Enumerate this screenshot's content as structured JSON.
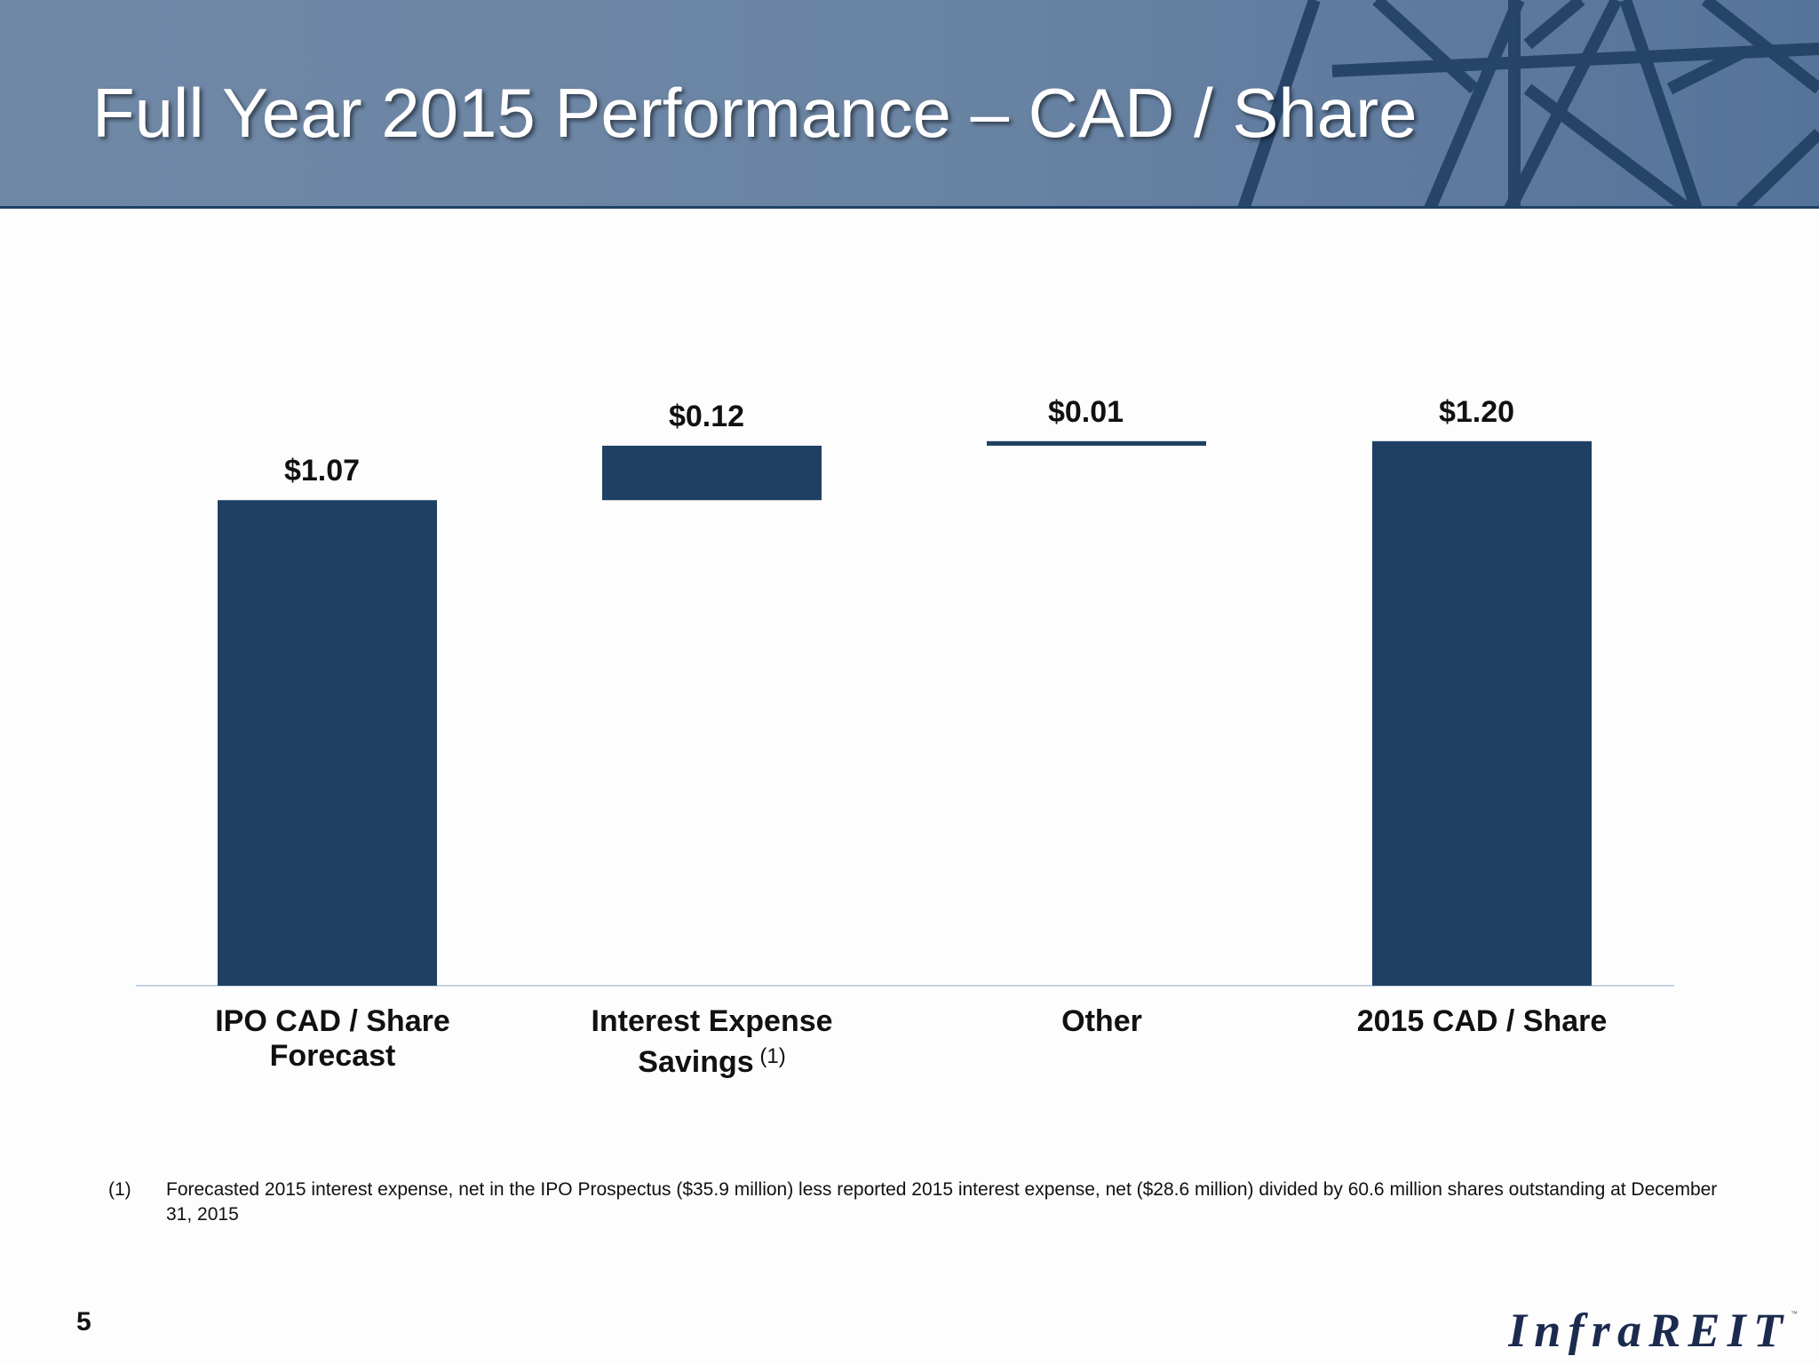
{
  "title": "Full Year 2015 Performance – CAD / Share",
  "chart_data": {
    "type": "waterfall",
    "categories": [
      "IPO CAD / Share Forecast",
      "Interest Expense Savings",
      "Other",
      "2015 CAD / Share"
    ],
    "category_lines": [
      [
        "IPO CAD / Share",
        "Forecast"
      ],
      [
        "Interest Expense",
        "Savings"
      ],
      [
        "Other"
      ],
      [
        "2015 CAD / Share"
      ]
    ],
    "category_superscript": [
      "",
      "(1)",
      "",
      ""
    ],
    "values": [
      1.07,
      0.12,
      0.01,
      1.2
    ],
    "kinds": [
      "total",
      "increase",
      "increase",
      "total"
    ],
    "data_labels": [
      "$1.07",
      "$0.12",
      "$0.01",
      "$1.20"
    ],
    "bar_color": "#1f4063",
    "grid": false
  },
  "footnote": {
    "mark": "(1)",
    "text": "Forecasted 2015 interest expense, net in the IPO Prospectus ($35.9 million) less reported 2015 interest expense, net ($28.6 million) divided by 60.6 million shares outstanding at December 31, 2015"
  },
  "page_number": "5",
  "logo": {
    "text": "InfraREIT",
    "tm": "™"
  },
  "colors": {
    "header": "#6a84a3",
    "accent": "#1f4063"
  }
}
